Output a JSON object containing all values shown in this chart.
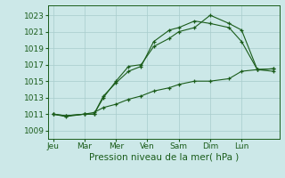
{
  "background_color": "#cce8e8",
  "grid_color": "#a8cccc",
  "line_color": "#1a5c1a",
  "xlabel": "Pression niveau de la mer( hPa )",
  "xtick_labels": [
    "Jeu",
    "Mar",
    "Mer",
    "Ven",
    "Sam",
    "Dim",
    "Lun"
  ],
  "ytick_values": [
    1009,
    1011,
    1013,
    1015,
    1017,
    1019,
    1021,
    1023
  ],
  "ylim": [
    1008.0,
    1024.2
  ],
  "xlim": [
    -0.15,
    7.2
  ],
  "xtick_positions": [
    0,
    1,
    2,
    3,
    4,
    5,
    6
  ],
  "series": [
    {
      "x": [
        0.0,
        0.4,
        1.0,
        1.3,
        1.6,
        2.0,
        2.4,
        2.8,
        3.2,
        3.7,
        4.0,
        4.5,
        5.0,
        5.6,
        6.0,
        6.5,
        7.0
      ],
      "y": [
        1011.0,
        1010.7,
        1011.0,
        1011.0,
        1013.0,
        1015.0,
        1016.8,
        1017.0,
        1019.2,
        1020.2,
        1021.0,
        1021.5,
        1023.0,
        1022.0,
        1021.2,
        1016.4,
        1016.2
      ]
    },
    {
      "x": [
        0.0,
        0.4,
        1.0,
        1.3,
        1.6,
        2.0,
        2.4,
        2.8,
        3.2,
        3.7,
        4.0,
        4.5,
        5.0,
        5.6,
        6.0,
        6.5,
        7.0
      ],
      "y": [
        1011.0,
        1010.8,
        1011.0,
        1011.0,
        1013.2,
        1014.8,
        1016.2,
        1016.8,
        1019.8,
        1021.2,
        1021.5,
        1022.3,
        1022.0,
        1021.5,
        1019.8,
        1016.4,
        1016.5
      ]
    },
    {
      "x": [
        0.0,
        0.4,
        1.0,
        1.3,
        1.6,
        2.0,
        2.4,
        2.8,
        3.2,
        3.7,
        4.0,
        4.5,
        5.0,
        5.6,
        6.0,
        6.5,
        7.0
      ],
      "y": [
        1011.0,
        1010.8,
        1011.0,
        1011.2,
        1011.8,
        1012.2,
        1012.8,
        1013.2,
        1013.8,
        1014.2,
        1014.6,
        1015.0,
        1015.0,
        1015.3,
        1016.2,
        1016.4,
        1016.5
      ]
    }
  ]
}
